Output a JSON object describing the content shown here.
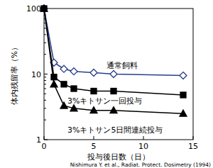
{
  "chart_data": {
    "type": "line",
    "x_label": "投与後日数（日）",
    "y_label": "体内残留率（%）",
    "annotations": [
      "Nishimura Y. et al., Radiat. Protect. Dosimetry (1994)"
    ],
    "x": [
      0,
      1,
      2,
      3,
      5,
      7,
      14
    ],
    "xlim": [
      0,
      15
    ],
    "xticks": [
      0,
      5,
      10,
      15
    ],
    "ylim": [
      1,
      100
    ],
    "yticks": [
      1,
      10,
      100
    ],
    "log": "y",
    "grid": false,
    "series": [
      {
        "name": "通常飼料",
        "color": "#2b3f8c",
        "marker": "open-diamond",
        "line_style": "solid",
        "values": [
          100,
          15,
          12,
          11,
          10.5,
          10,
          9.5
        ]
      },
      {
        "name": "3%キトサン一回投与",
        "color": "#000000",
        "marker": "square",
        "line_style": "solid",
        "values": [
          100,
          9,
          7,
          6,
          5.5,
          5.5,
          4.8
        ]
      },
      {
        "name": "3%キトサン5日間連続投与",
        "color": "#000000",
        "marker": "triangle",
        "line_style": "solid",
        "values": [
          100,
          7,
          3.3,
          3,
          2.8,
          2.8,
          2.5
        ]
      }
    ]
  }
}
